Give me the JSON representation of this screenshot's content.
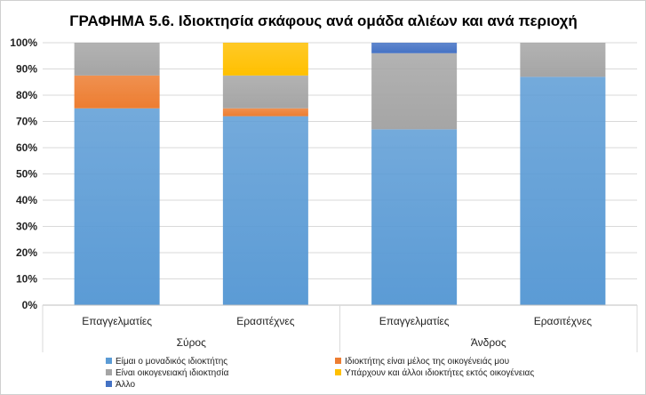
{
  "chart_data": {
    "type": "bar",
    "stacked": true,
    "title": "ΓΡΑΦΗΜΑ 5.6. Ιδιοκτησία σκάφους ανά ομάδα αλιέων και ανά περιοχή",
    "ylim": [
      0,
      100
    ],
    "yticks": [
      "0%",
      "10%",
      "20%",
      "30%",
      "40%",
      "50%",
      "60%",
      "70%",
      "80%",
      "90%",
      "100%"
    ],
    "categories": [
      "Επαγγελματίες",
      "Ερασιτέχνες",
      "Επαγγελματίες",
      "Ερασιτέχνες"
    ],
    "groups": [
      {
        "label": "Σύρος",
        "categories": [
          0,
          1
        ]
      },
      {
        "label": "Άνδρος",
        "categories": [
          2,
          3
        ]
      }
    ],
    "grid": true,
    "legend_position": "bottom",
    "series": [
      {
        "name": "Είμαι ο μοναδικός ιδιοκτήτης",
        "color": "#5b9bd5",
        "values": [
          75,
          72,
          67,
          87
        ]
      },
      {
        "name": "Ιδιοκτήτης είναι μέλος της οικογένειάς μου",
        "color": "#ed7d31",
        "values": [
          12.5,
          3,
          0,
          0
        ]
      },
      {
        "name": "Είναι οικογενειακή ιδιοκτησία",
        "color": "#a5a5a5",
        "values": [
          12.5,
          12.5,
          29,
          13
        ]
      },
      {
        "name": "Υπάρχουν και άλλοι ιδιοκτήτες εκτός οικογένειας",
        "color": "#ffc000",
        "values": [
          0,
          12.5,
          0,
          0
        ]
      },
      {
        "name": "Άλλο",
        "color": "#4472c4",
        "values": [
          0,
          0,
          4,
          0
        ]
      }
    ]
  }
}
